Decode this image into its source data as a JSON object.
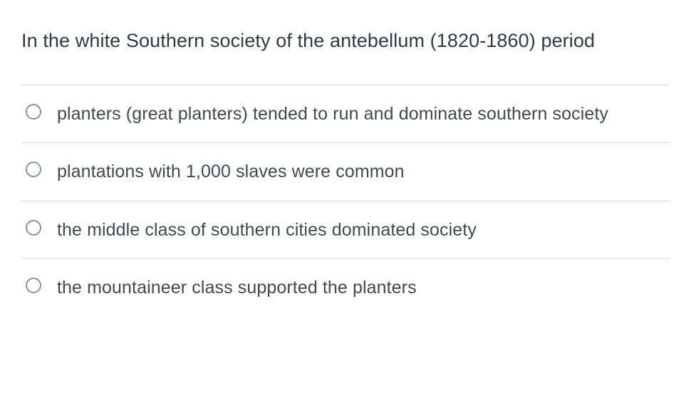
{
  "question": {
    "text": "In the white Southern society of the antebellum (1820-1860) period",
    "text_color": "#2d3b45",
    "fontsize": 27
  },
  "options": [
    {
      "label": "planters (great planters) tended to run and dominate southern society",
      "selected": false
    },
    {
      "label": "plantations with 1,000 slaves were common",
      "selected": false
    },
    {
      "label": "the middle class of southern cities dominated society",
      "selected": false
    },
    {
      "label": "the mountaineer class supported the planters",
      "selected": false
    }
  ],
  "style": {
    "background_color": "#ffffff",
    "divider_color": "#d6d9dc",
    "radio_border_color": "#8a9299",
    "option_text_color": "#3f4a52",
    "option_fontsize": 25
  }
}
